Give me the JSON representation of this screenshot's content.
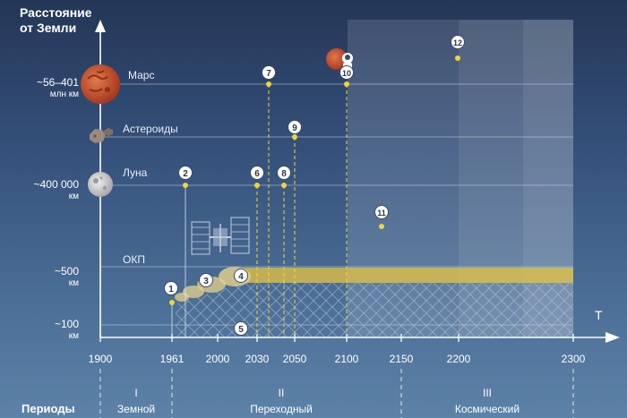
{
  "y_axis": {
    "title_line1": "Расстояние",
    "title_line2": "от Земли",
    "levels": [
      {
        "value": "~56–401",
        "unit": "млн км"
      },
      {
        "value": "~400 000",
        "unit": "км"
      },
      {
        "value": "~500",
        "unit": "км"
      },
      {
        "value": "~100",
        "unit": "км"
      }
    ]
  },
  "x_axis": {
    "label": "T",
    "ticks": [
      "1900",
      "1961",
      "2000",
      "2030",
      "2050",
      "2100",
      "2150",
      "2200",
      "2300"
    ]
  },
  "zones": {
    "mars": "Марс",
    "asteroids": "Астероиды",
    "moon": "Луна",
    "leo": "ОКП"
  },
  "markers": [
    "1",
    "2",
    "3",
    "4",
    "5",
    "6",
    "7",
    "8",
    "9",
    "10",
    "11",
    "12"
  ],
  "periods": {
    "title": "Периоды",
    "items": [
      {
        "num": "I",
        "name": "Земной"
      },
      {
        "num": "II",
        "name": "Переходный"
      },
      {
        "num": "III",
        "name": "Космический"
      }
    ]
  },
  "colors": {
    "marker_dot": "#f2d43a",
    "leo_band": "#e8c542",
    "mars": "#c9542f",
    "moon": "#d8d8d8",
    "guide_line": "#c8d2e0"
  },
  "icons": [
    "mars-icon",
    "asteroid-icon",
    "moon-icon",
    "space-station-icon",
    "astronaut-on-mars-icon"
  ]
}
